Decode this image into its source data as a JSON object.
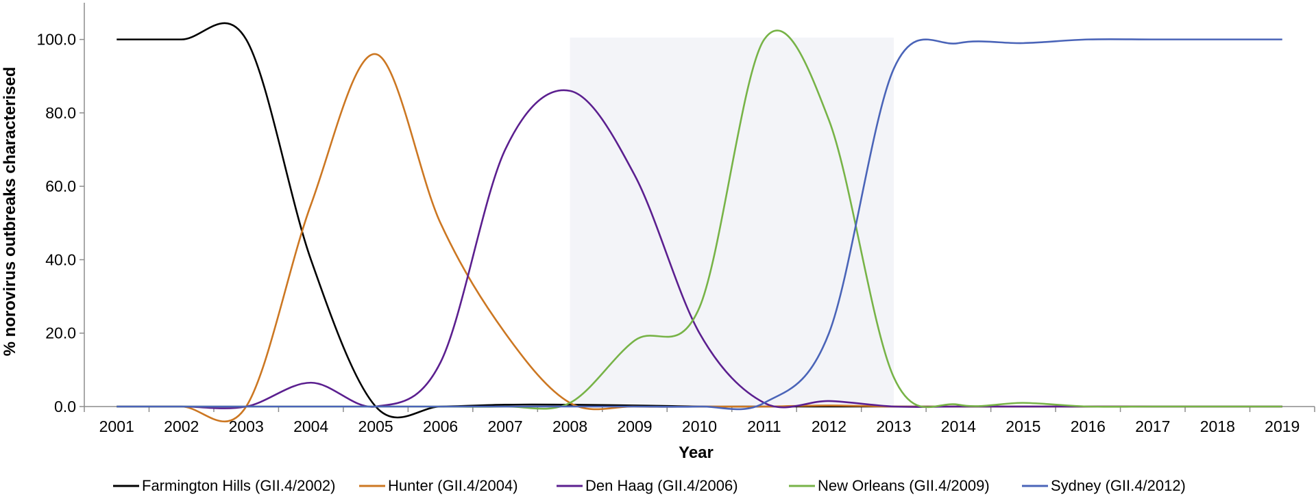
{
  "chart_data": {
    "type": "line",
    "title": "",
    "xlabel": "Year",
    "ylabel": "% norovirus outbreaks characterised",
    "x": [
      "2001",
      "2002",
      "2003",
      "2004",
      "2005",
      "2006",
      "2007",
      "2008",
      "2009",
      "2010",
      "2011",
      "2012",
      "2013",
      "2014",
      "2015",
      "2016",
      "2017",
      "2018",
      "2019"
    ],
    "ylim": [
      0,
      100
    ],
    "yticks": [
      "0.0",
      "20.0",
      "40.0",
      "60.0",
      "80.0",
      "100.0"
    ],
    "grid": false,
    "legend_position": "bottom",
    "highlight_band": {
      "x_from": 7.5,
      "x_to": 12.5,
      "color": "#f3f4f8"
    },
    "series": [
      {
        "name": "Farmington Hills (GII.4/2002)",
        "color": "#000000",
        "values": [
          100,
          100,
          100,
          40,
          0,
          0,
          0.5,
          0.5,
          0.3,
          0,
          0,
          0,
          0,
          0,
          0,
          0,
          0,
          0,
          0
        ]
      },
      {
        "name": "Hunter (GII.4/2004)",
        "color": "#cc7722",
        "values": [
          0,
          0,
          0,
          55,
          96,
          50,
          20,
          1,
          0,
          0,
          0,
          0.3,
          0,
          0,
          0,
          0,
          0,
          0,
          0
        ]
      },
      {
        "name": "Den Haag (GII.4/2006)",
        "color": "#5b1f8f",
        "values": [
          0,
          0,
          0,
          6.5,
          0,
          12,
          70,
          86,
          63,
          20,
          1,
          1.5,
          0,
          0,
          0,
          0,
          0,
          0,
          0
        ]
      },
      {
        "name": "New Orleans (GII.4/2009)",
        "color": "#77b347",
        "values": [
          0,
          0,
          0,
          0,
          0,
          0,
          0,
          1,
          18,
          27,
          100,
          78,
          8,
          0.5,
          1,
          0,
          0,
          0,
          0
        ]
      },
      {
        "name": "Sydney (GII.4/2012)",
        "color": "#4a64b8",
        "values": [
          0,
          0,
          0,
          0,
          0,
          0,
          0,
          0,
          0,
          0,
          1,
          20,
          92,
          99,
          99,
          100,
          100,
          100,
          100
        ]
      }
    ]
  }
}
